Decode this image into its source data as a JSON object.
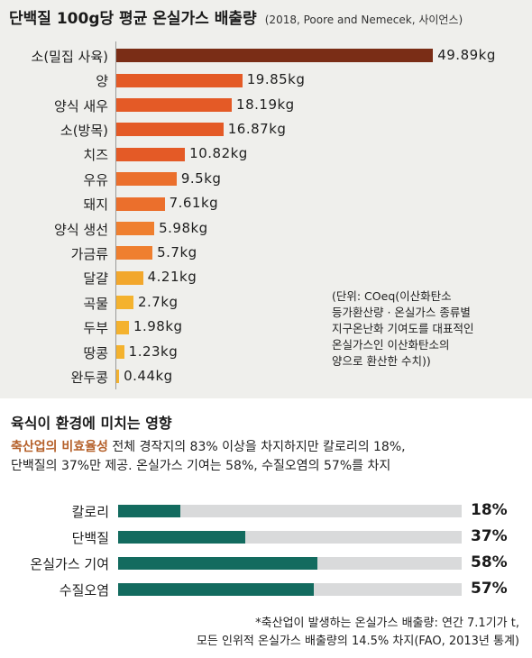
{
  "header": {
    "title": "단백질 100g당 평균 온실가스 배출량",
    "source": "(2018, Poore and Nemecek, 사이언스)"
  },
  "note": {
    "lines": [
      "(단위: COeq(이산화탄소",
      "등가환산량 · 온실가스 종류별",
      "지구온난화 기여도를 대표적인",
      "온실가스인 이산화탄소의",
      "양으로 환산한 수치))"
    ]
  },
  "chart_data": [
    {
      "type": "bar",
      "orientation": "horizontal",
      "title": "단백질 100g당 평균 온실가스 배출량",
      "categories": [
        "소(밀집 사육)",
        "양",
        "양식 새우",
        "소(방목)",
        "치즈",
        "우유",
        "돼지",
        "양식 생선",
        "가금류",
        "달걀",
        "곡물",
        "두부",
        "땅콩",
        "완두콩"
      ],
      "values": [
        49.89,
        19.85,
        18.19,
        16.87,
        10.82,
        9.5,
        7.61,
        5.98,
        5.7,
        4.21,
        2.7,
        1.98,
        1.23,
        0.44
      ],
      "value_labels": [
        "49.89kg",
        "19.85kg",
        "18.19kg",
        "16.87kg",
        "10.82kg",
        "9.5kg",
        "7.61kg",
        "5.98kg",
        "5.7kg",
        "4.21kg",
        "2.7kg",
        "1.98kg",
        "1.23kg",
        "0.44kg"
      ],
      "colors": [
        "#7a2d16",
        "#e45a26",
        "#e45a26",
        "#e45a26",
        "#e45a26",
        "#eb6f2c",
        "#eb6f2c",
        "#ef7f2f",
        "#ef7f2f",
        "#f2a72c",
        "#f4b22e",
        "#f4b22e",
        "#f4b22e",
        "#f4b22e"
      ],
      "xlim": [
        0,
        50
      ]
    },
    {
      "type": "bar",
      "orientation": "horizontal",
      "title": "육식이 환경에 미치는 영향",
      "categories": [
        "칼로리",
        "단백질",
        "온실가스 기여",
        "수질오염"
      ],
      "values": [
        18,
        37,
        58,
        57
      ],
      "value_labels": [
        "18%",
        "37%",
        "58%",
        "57%"
      ],
      "xlim": [
        0,
        100
      ],
      "colors": {
        "fill": "#136b5f",
        "track": "#d9dadb"
      }
    }
  ],
  "section2": {
    "title": "육식이 환경에 미치는 영향",
    "desc_highlight": "축산업의 비효율성",
    "desc_line1_rest": " 전체 경작지의 83% 이상을 차지하지만 칼로리의 18%,",
    "desc_line2": "단백질의 37%만 제공. 온실가스 기여는 58%, 수질오염의 57%를 차지"
  },
  "footnote": {
    "line1": "*축산업이 발생하는 온실가스 배출량: 연간 7.1기가 t,",
    "line2": "모든 인위적 온실가스 배출량의 14.5% 차지(FAO, 2013년 통계)"
  },
  "colors": {
    "panel_bg": "#efefec",
    "highlight": "#b5602a"
  }
}
